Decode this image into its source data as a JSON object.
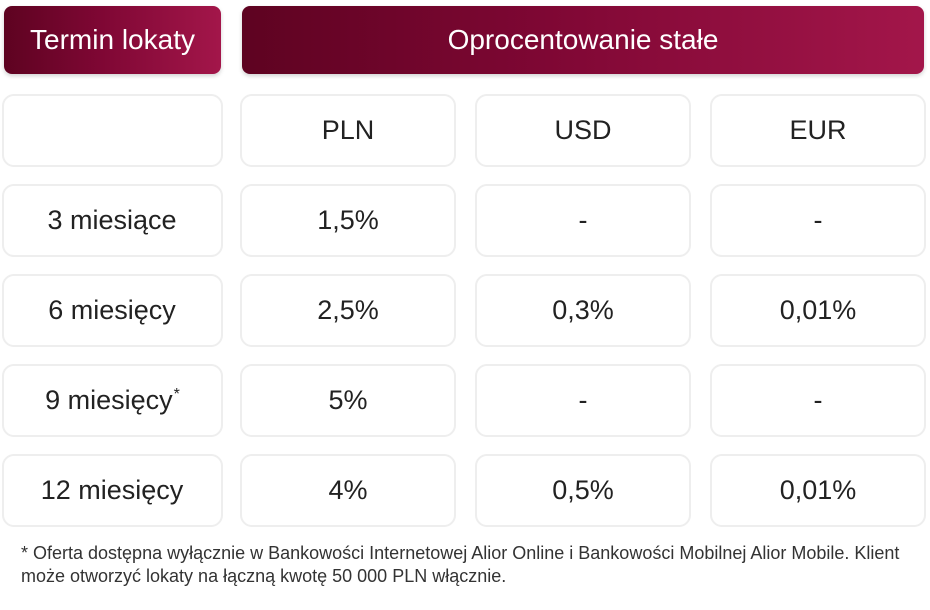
{
  "header": {
    "term_label": "Termin lokaty",
    "rate_label": "Oprocentowanie stałe"
  },
  "columns": [
    "PLN",
    "USD",
    "EUR"
  ],
  "rows": [
    {
      "term": "3 miesiące",
      "marker": "",
      "values": [
        "1,5%",
        "-",
        "-"
      ]
    },
    {
      "term": "6 miesięcy",
      "marker": "",
      "values": [
        "2,5%",
        "0,3%",
        "0,01%"
      ]
    },
    {
      "term": "9 miesięcy",
      "marker": "*",
      "values": [
        "5%",
        "-",
        "-"
      ]
    },
    {
      "term": "12 miesięcy",
      "marker": "",
      "values": [
        "4%",
        "0,5%",
        "0,01%"
      ]
    }
  ],
  "footnote": "* Oferta dostępna wyłącznie w Bankowości Internetowej Alior Online i Bankowości Mobilnej Alior Mobile. Klient może otworzyć lokaty na łączną kwotę 50 000 PLN włącznie.",
  "colors": {
    "header_gradient_start": "#5e0321",
    "header_gradient_end": "#a3164a",
    "header_text": "#ffffff",
    "cell_border": "#eeeeee"
  }
}
